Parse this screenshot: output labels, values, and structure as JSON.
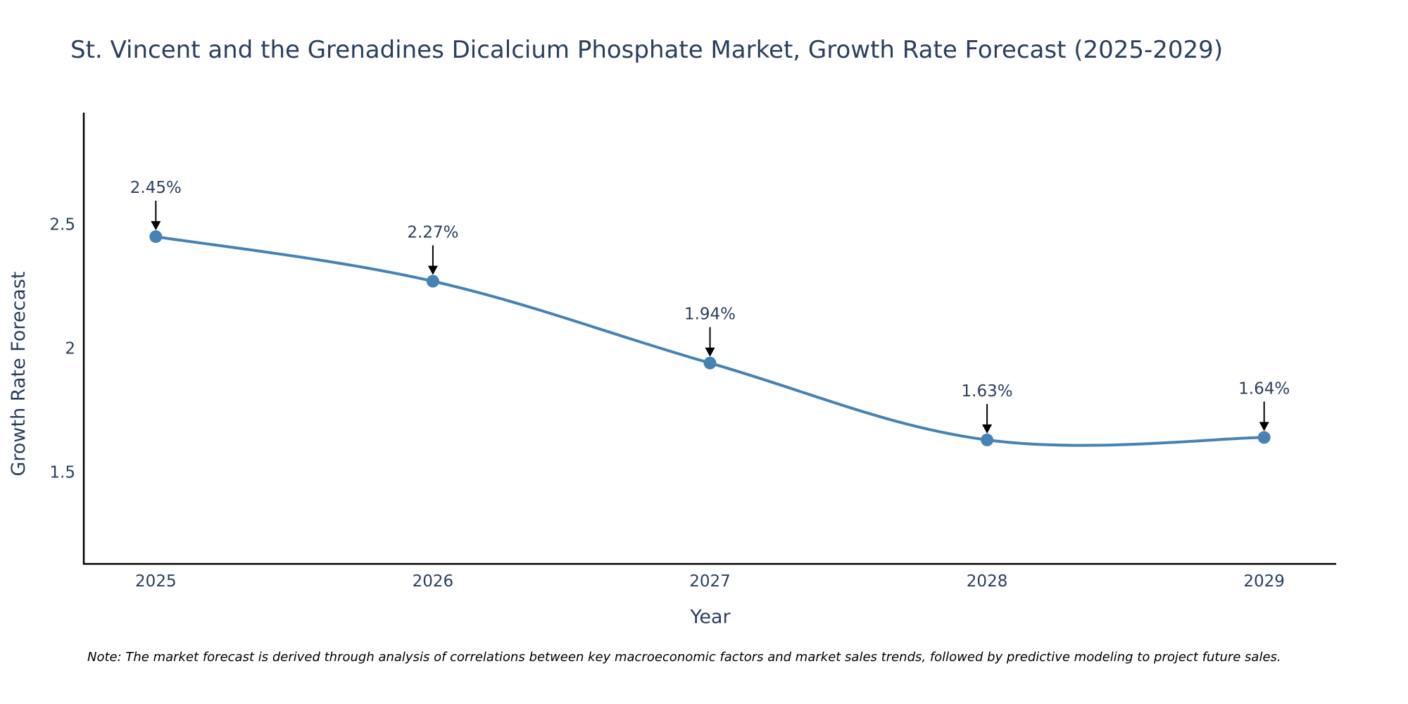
{
  "colors": {
    "line": "#4682b4",
    "marker": "#4682b4",
    "axis": "#000000",
    "text": "#2a3f5f",
    "arrow": "#000000"
  },
  "chart_data": {
    "type": "line",
    "title": "St. Vincent and the Grenadines Dicalcium Phosphate Market, Growth Rate Forecast (2025-2029)",
    "xlabel": "Year",
    "ylabel": "Growth Rate Forecast",
    "categories": [
      "2025",
      "2026",
      "2027",
      "2028",
      "2029"
    ],
    "series": [
      {
        "name": "Growth Rate Forecast",
        "values": [
          2.45,
          2.27,
          1.94,
          1.63,
          1.64
        ]
      }
    ],
    "data_labels": [
      "2.45%",
      "2.27%",
      "1.94%",
      "1.63%",
      "1.64%"
    ],
    "yticks": [
      1.5,
      2,
      2.5
    ],
    "ytick_labels": [
      "1.5",
      "2",
      "2.5"
    ],
    "ylim": [
      1.13,
      2.95
    ],
    "xlim": [
      -0.26,
      4.26
    ],
    "grid": false,
    "line_shape": "spline",
    "note": "Note: The market forecast is derived through analysis of correlations between key macroeconomic factors and market sales trends, followed by predictive modeling to project future sales."
  }
}
